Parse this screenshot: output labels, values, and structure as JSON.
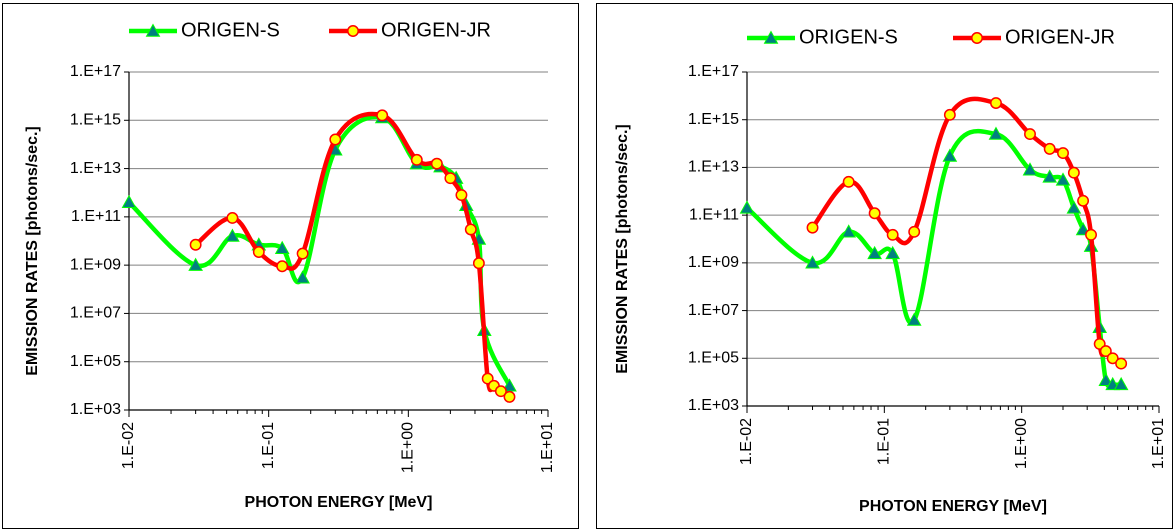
{
  "chart_data": [
    {
      "type": "line",
      "title": "",
      "xlabel": "PHOTON ENERGY  [MeV]",
      "ylabel": "EMISSION RATES  [photons/sec.]",
      "x_scale": "log",
      "y_scale": "log",
      "xlim": [
        0.01,
        10
      ],
      "ylim": [
        1000.0,
        1e+17
      ],
      "x_tick_labels": [
        "1.E-02",
        "1.E-01",
        "1.E+00",
        "1.E+01"
      ],
      "x_tick_values": [
        0.01,
        0.1,
        1,
        10
      ],
      "y_tick_labels": [
        "1.E+03",
        "1.E+05",
        "1.E+07",
        "1.E+09",
        "1.E+11",
        "1.E+13",
        "1.E+15",
        "1.E+17"
      ],
      "y_tick_values": [
        1000.0,
        100000.0,
        10000000.0,
        1000000000.0,
        100000000000.0,
        10000000000000.0,
        1000000000000000.0,
        1e+17
      ],
      "grid": true,
      "legend_position": "top",
      "series": [
        {
          "name": "ORIGEN-S",
          "color": "#00ff00",
          "marker": "triangle",
          "marker_color": "#008080",
          "x": [
            0.01,
            0.03,
            0.055,
            0.085,
            0.125,
            0.175,
            0.3,
            0.65,
            1.15,
            1.7,
            2.2,
            2.6,
            3.2,
            3.5,
            5.3
          ],
          "y": [
            400000000000.0,
            1000000000.0,
            16000000000.0,
            7000000000.0,
            5000000000.0,
            300000000.0,
            60000000000000.0,
            1300000000000000.0,
            16000000000000.0,
            12000000000000.0,
            4000000000000.0,
            300000000000.0,
            12000000000.0,
            2000000.0,
            10000.0
          ]
        },
        {
          "name": "ORIGEN-JR",
          "color": "#ff0000",
          "marker": "circle",
          "marker_color": "#ffff00",
          "x": [
            0.03,
            0.055,
            0.085,
            0.125,
            0.175,
            0.3,
            0.65,
            1.15,
            1.6,
            2.0,
            2.4,
            2.8,
            3.2,
            3.7,
            4.1,
            4.6,
            5.3
          ],
          "y": [
            7000000000.0,
            90000000000.0,
            3500000000.0,
            900000000.0,
            3000000000.0,
            160000000000000.0,
            1600000000000000.0,
            23000000000000.0,
            16000000000000.0,
            4000000000000.0,
            800000000000.0,
            30000000000.0,
            1200000000.0,
            20000.0,
            10000.0,
            6000.0,
            3500.0
          ]
        }
      ]
    },
    {
      "type": "line",
      "title": "",
      "xlabel": "PHOTON ENERGY  [MeV]",
      "ylabel": "EMISSION RATES  [photons/sec.]",
      "x_scale": "log",
      "y_scale": "log",
      "xlim": [
        0.01,
        10
      ],
      "ylim": [
        1000.0,
        1e+17
      ],
      "x_tick_labels": [
        "1.E-02",
        "1.E-01",
        "1.E+00",
        "1.E+01"
      ],
      "x_tick_values": [
        0.01,
        0.1,
        1,
        10
      ],
      "y_tick_labels": [
        "1.E+03",
        "1.E+05",
        "1.E+07",
        "1.E+09",
        "1.E+11",
        "1.E+13",
        "1.E+15",
        "1.E+17"
      ],
      "y_tick_values": [
        1000.0,
        100000.0,
        10000000.0,
        1000000000.0,
        100000000000.0,
        10000000000000.0,
        1000000000000000.0,
        1e+17
      ],
      "grid": true,
      "legend_position": "top",
      "series": [
        {
          "name": "ORIGEN-S",
          "color": "#00ff00",
          "marker": "triangle",
          "marker_color": "#008080",
          "x": [
            0.01,
            0.03,
            0.055,
            0.085,
            0.115,
            0.165,
            0.3,
            0.65,
            1.15,
            1.6,
            2.0,
            2.4,
            2.8,
            3.2,
            3.7,
            4.1,
            4.6,
            5.3
          ],
          "y": [
            200000000000.0,
            1000000000.0,
            20000000000.0,
            2500000000.0,
            2500000000.0,
            4000000.0,
            30000000000000.0,
            250000000000000.0,
            8000000000000.0,
            4000000000000.0,
            3000000000000.0,
            200000000000.0,
            25000000000.0,
            5000000000.0,
            2000000.0,
            12000.0,
            8000.0,
            8000.0
          ]
        },
        {
          "name": "ORIGEN-JR",
          "color": "#ff0000",
          "marker": "circle",
          "marker_color": "#ffff00",
          "x": [
            0.03,
            0.055,
            0.085,
            0.115,
            0.165,
            0.3,
            0.65,
            1.15,
            1.6,
            2.0,
            2.4,
            2.8,
            3.2,
            3.7,
            4.1,
            4.6,
            5.3
          ],
          "y": [
            30000000000.0,
            2500000000000.0,
            120000000000.0,
            15000000000.0,
            20000000000.0,
            1600000000000000.0,
            5000000000000000.0,
            250000000000000.0,
            60000000000000.0,
            40000000000000.0,
            6000000000000.0,
            400000000000.0,
            15000000000.0,
            400000.0,
            200000.0,
            100000.0,
            60000.0
          ]
        }
      ]
    }
  ]
}
